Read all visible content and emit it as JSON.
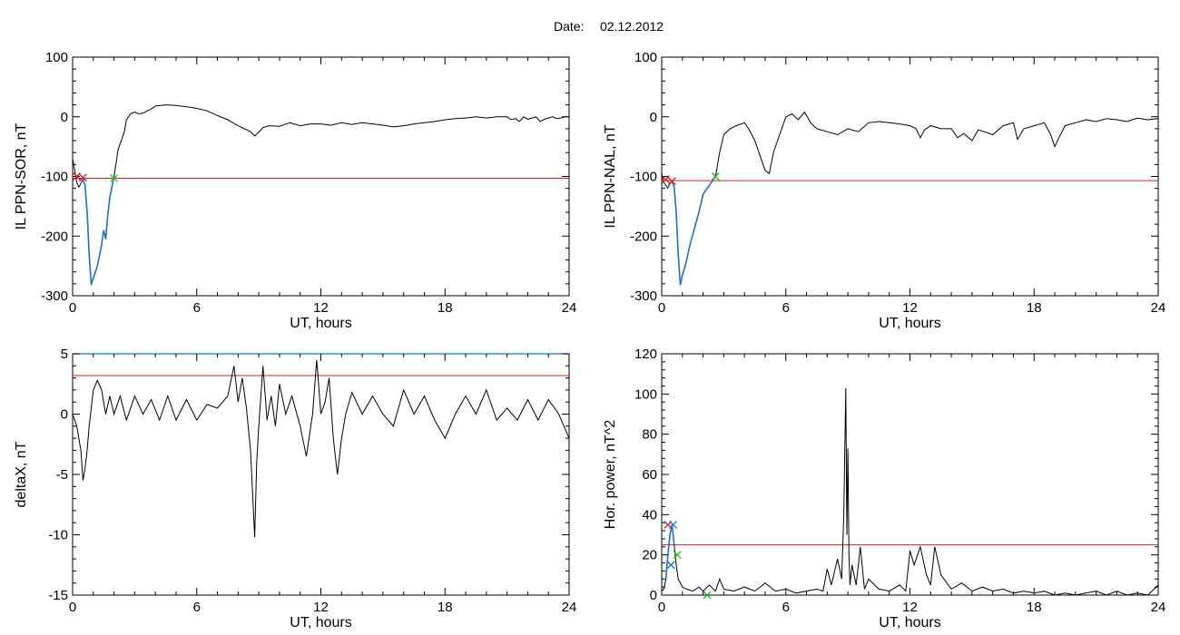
{
  "header": {
    "date_label": "Date:",
    "date_value": "02.12.2012"
  },
  "colors": {
    "line": "#000000",
    "threshold": "#cc2222",
    "highlight": "#1f6fd6",
    "marker_start": "#cc2222",
    "marker_end": "#22bb22",
    "marker_blue": "#1f6fd6"
  },
  "chart_data": [
    {
      "type": "line",
      "ylabel": "IL PPN-SOR, nT",
      "xlabel": "UT, hours",
      "xlim": [
        0,
        24
      ],
      "ylim": [
        -300,
        100
      ],
      "xticks": [
        0,
        6,
        12,
        18,
        24
      ],
      "yticks": [
        -300,
        -200,
        -100,
        0,
        100
      ],
      "threshold": -103,
      "highlight_range": [
        0.35,
        2.0
      ],
      "markers": [
        {
          "x": 0.2,
          "y": -100,
          "color": "red"
        },
        {
          "x": 0.5,
          "y": -102,
          "color": "red"
        },
        {
          "x": 2.0,
          "y": -103,
          "color": "green"
        }
      ],
      "series": [
        {
          "x": [
            0,
            0.1,
            0.2,
            0.3,
            0.4,
            0.5,
            0.6,
            0.7,
            0.8,
            0.9,
            1.0,
            1.1,
            1.2,
            1.4,
            1.5,
            1.6,
            1.7,
            1.8,
            1.9,
            2.0,
            2.1,
            2.2,
            2.4,
            2.5,
            2.6,
            2.8,
            3.0,
            3.2,
            3.4,
            3.6,
            3.8,
            4.0,
            4.5,
            5.0,
            5.5,
            6.0,
            6.5,
            7.0,
            7.5,
            8.0,
            8.3,
            8.6,
            8.8,
            9.0,
            9.2,
            9.5,
            10.0,
            10.5,
            11.0,
            11.5,
            12.0,
            12.5,
            13.0,
            13.5,
            14.0,
            14.5,
            15.0,
            15.5,
            16.0,
            16.5,
            17.0,
            17.5,
            18.0,
            18.5,
            19.0,
            19.5,
            20.0,
            20.5,
            21.0,
            21.2,
            21.4,
            21.6,
            21.8,
            22.0,
            22.2,
            22.4,
            22.6,
            22.8,
            23.0,
            23.2,
            23.4,
            23.6,
            23.8,
            24.0
          ],
          "values": [
            -70,
            -90,
            -110,
            -118,
            -112,
            -105,
            -115,
            -160,
            -230,
            -282,
            -270,
            -260,
            -250,
            -215,
            -190,
            -205,
            -165,
            -135,
            -118,
            -100,
            -78,
            -55,
            -35,
            -25,
            -5,
            5,
            8,
            5,
            6,
            10,
            13,
            18,
            20,
            19,
            17,
            14,
            10,
            2,
            -5,
            -15,
            -20,
            -25,
            -32,
            -26,
            -18,
            -15,
            -16,
            -10,
            -15,
            -12,
            -12,
            -14,
            -10,
            -13,
            -10,
            -12,
            -14,
            -17,
            -15,
            -12,
            -10,
            -8,
            -5,
            -3,
            -2,
            0,
            -2,
            0,
            0,
            -5,
            -3,
            -8,
            0,
            -4,
            -2,
            0,
            -8,
            -4,
            -2,
            0,
            -3,
            -2,
            0,
            0
          ]
        }
      ]
    },
    {
      "type": "line",
      "ylabel": "IL PPN-NAL, nT",
      "xlabel": "UT, hours",
      "xlim": [
        0,
        24
      ],
      "ylim": [
        -300,
        100
      ],
      "xticks": [
        0,
        6,
        12,
        18,
        24
      ],
      "yticks": [
        -300,
        -200,
        -100,
        0,
        100
      ],
      "threshold": -107,
      "highlight_range": [
        0.3,
        2.6
      ],
      "markers": [
        {
          "x": 0.2,
          "y": -105,
          "color": "red"
        },
        {
          "x": 0.5,
          "y": -108,
          "color": "red"
        },
        {
          "x": 2.6,
          "y": -100,
          "color": "green"
        }
      ],
      "series": [
        {
          "x": [
            0,
            0.1,
            0.2,
            0.3,
            0.4,
            0.5,
            0.6,
            0.7,
            0.8,
            0.9,
            1.0,
            1.1,
            1.2,
            1.4,
            1.6,
            1.8,
            2.0,
            2.2,
            2.4,
            2.6,
            2.8,
            3.0,
            3.3,
            3.6,
            4.0,
            4.2,
            4.5,
            4.8,
            5.0,
            5.2,
            5.4,
            5.6,
            5.8,
            6.0,
            6.3,
            6.6,
            6.9,
            7.2,
            7.5,
            8.0,
            8.5,
            9.0,
            9.5,
            10.0,
            10.5,
            11.0,
            11.5,
            12.0,
            12.3,
            12.5,
            12.7,
            13.0,
            13.5,
            14.0,
            14.3,
            14.6,
            15.0,
            15.3,
            15.6,
            16.0,
            16.5,
            17.0,
            17.2,
            17.5,
            18.0,
            18.5,
            18.8,
            19.0,
            19.2,
            19.5,
            20.0,
            20.5,
            21.0,
            21.5,
            22.0,
            22.5,
            23.0,
            23.5,
            24.0
          ],
          "values": [
            -95,
            -110,
            -115,
            -120,
            -112,
            -108,
            -118,
            -160,
            -230,
            -282,
            -265,
            -255,
            -240,
            -210,
            -185,
            -160,
            -130,
            -120,
            -110,
            -100,
            -60,
            -30,
            -20,
            -15,
            -10,
            -20,
            -40,
            -70,
            -90,
            -95,
            -60,
            -40,
            -20,
            0,
            5,
            -5,
            8,
            -10,
            -20,
            -25,
            -30,
            -20,
            -25,
            -10,
            -8,
            -10,
            -12,
            -15,
            -20,
            -35,
            -22,
            -15,
            -20,
            -20,
            -35,
            -28,
            -40,
            -22,
            -25,
            -30,
            -15,
            -10,
            -38,
            -20,
            -15,
            -10,
            -30,
            -50,
            -35,
            -15,
            -10,
            -5,
            -8,
            -3,
            -5,
            -8,
            -2,
            -5,
            -3
          ]
        }
      ]
    },
    {
      "type": "line",
      "ylabel": "deltaX, nT",
      "xlabel": "UT, hours",
      "xlim": [
        0,
        24
      ],
      "ylim": [
        -15,
        5
      ],
      "xticks": [
        0,
        6,
        12,
        18,
        24
      ],
      "yticks": [
        -15,
        -10,
        -5,
        0,
        5
      ],
      "threshold": 3.2,
      "top_line_color": "#1f6fd6",
      "series": [
        {
          "x": [
            0,
            0.2,
            0.4,
            0.5,
            0.6,
            0.7,
            0.8,
            1.0,
            1.2,
            1.4,
            1.6,
            1.8,
            2.0,
            2.3,
            2.6,
            3.0,
            3.4,
            3.8,
            4.2,
            4.6,
            5.0,
            5.5,
            6.0,
            6.5,
            7.0,
            7.5,
            7.8,
            8.0,
            8.2,
            8.4,
            8.6,
            8.8,
            8.9,
            9.0,
            9.2,
            9.4,
            9.6,
            9.8,
            10.0,
            10.3,
            10.6,
            11.0,
            11.3,
            11.6,
            11.8,
            12.0,
            12.2,
            12.4,
            12.6,
            12.8,
            13.0,
            13.2,
            13.5,
            14.0,
            14.5,
            15.0,
            15.5,
            16.0,
            16.5,
            17.0,
            17.5,
            18.0,
            18.5,
            19.0,
            19.5,
            20.0,
            20.5,
            21.0,
            21.5,
            22.0,
            22.5,
            23.0,
            23.5,
            24.0
          ],
          "values": [
            0,
            -1,
            -3,
            -5.5,
            -4.5,
            -3,
            -1,
            2,
            2.8,
            2,
            0,
            1.5,
            0,
            1.5,
            -0.5,
            1.5,
            0,
            1.2,
            -0.5,
            1.5,
            -0.5,
            1.2,
            -0.5,
            0.8,
            0.5,
            1.5,
            4,
            1,
            3,
            0.5,
            -3,
            -10.2,
            -4,
            -1,
            4,
            -0.5,
            1.5,
            -1,
            2.5,
            0,
            1.5,
            -1,
            -3.5,
            0,
            4.5,
            0,
            1,
            3,
            -2,
            -5,
            -2,
            0,
            1.8,
            0,
            1.5,
            0,
            -1,
            2,
            0,
            1.5,
            -0.5,
            -2,
            0,
            1.5,
            0,
            2,
            -0.5,
            0.5,
            -0.5,
            1.2,
            -0.5,
            1.2,
            0,
            -2
          ]
        }
      ]
    },
    {
      "type": "line",
      "ylabel": "Hor. power, nT^2",
      "xlabel": "UT, hours",
      "xlim": [
        0,
        24
      ],
      "ylim": [
        0,
        120
      ],
      "xticks": [
        0,
        6,
        12,
        18,
        24
      ],
      "yticks": [
        0,
        20,
        40,
        60,
        80,
        100,
        120
      ],
      "threshold": 25,
      "highlight_range": [
        0.2,
        0.6
      ],
      "markers": [
        {
          "x": 0.3,
          "y": 35,
          "color": "red"
        },
        {
          "x": 0.55,
          "y": 35,
          "color": "blue"
        },
        {
          "x": 0.45,
          "y": 15,
          "color": "blue"
        },
        {
          "x": 0.75,
          "y": 20,
          "color": "green"
        },
        {
          "x": 2.2,
          "y": 0,
          "color": "green"
        }
      ],
      "series": [
        {
          "x": [
            0,
            0.1,
            0.2,
            0.3,
            0.4,
            0.5,
            0.6,
            0.7,
            0.8,
            1.0,
            1.2,
            1.5,
            1.8,
            2.0,
            2.3,
            2.6,
            2.8,
            3.0,
            3.5,
            4.0,
            4.5,
            5.0,
            5.5,
            6.0,
            6.5,
            7.0,
            7.5,
            7.8,
            8.0,
            8.2,
            8.5,
            8.7,
            8.8,
            8.9,
            8.95,
            9.0,
            9.05,
            9.1,
            9.2,
            9.4,
            9.6,
            9.8,
            10.0,
            10.5,
            11.0,
            11.5,
            11.8,
            12.0,
            12.2,
            12.5,
            12.8,
            13.0,
            13.2,
            13.5,
            14.0,
            14.5,
            15.0,
            15.5,
            16.0,
            16.5,
            17.0,
            17.5,
            18.0,
            18.5,
            19.0,
            19.5,
            20.0,
            20.5,
            21.0,
            21.5,
            22.0,
            22.5,
            23.0,
            23.5,
            24.0
          ],
          "values": [
            2,
            3,
            8,
            20,
            30,
            35,
            25,
            15,
            8,
            4,
            3,
            2,
            4,
            2,
            5,
            2,
            8,
            3,
            2,
            4,
            2,
            6,
            2,
            3,
            1,
            2,
            3,
            2,
            13,
            5,
            18,
            8,
            40,
            103,
            30,
            73,
            20,
            5,
            15,
            5,
            24,
            3,
            8,
            3,
            2,
            5,
            2,
            22,
            15,
            24,
            10,
            5,
            24,
            10,
            3,
            6,
            2,
            4,
            2,
            3,
            1,
            2,
            1,
            2,
            0,
            1,
            0,
            1,
            2,
            0,
            2,
            0,
            1,
            0,
            5
          ]
        }
      ]
    }
  ]
}
